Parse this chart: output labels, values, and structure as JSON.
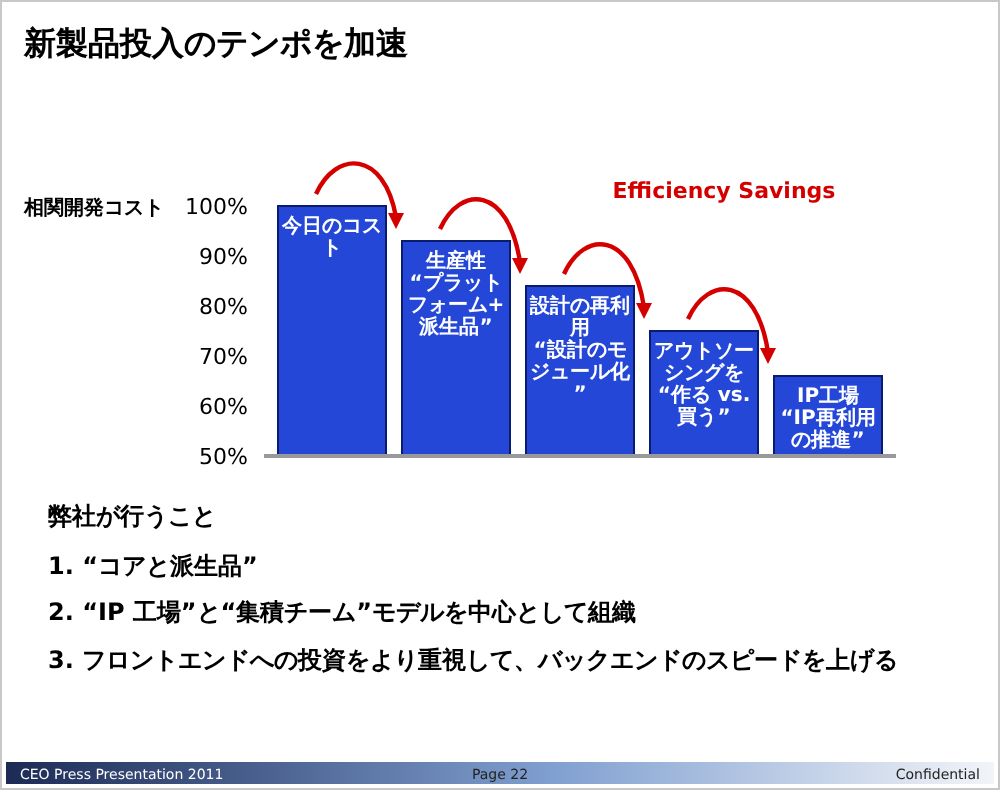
{
  "chart_data": {
    "type": "bar",
    "title": "新製品投入のテンポを加速",
    "ylabel": "相関開発コスト",
    "categories": [
      "今日のコスト",
      "生産性 “プラットフォーム+派生品”",
      "設計の再利用 “設計のモジュール化”",
      "アウトソーシングを “作る vs. 買う”",
      "IP工場 “IP再利用の推進”"
    ],
    "values": [
      100,
      93,
      84,
      75,
      66
    ],
    "color": "#2447d8",
    "ylim": [
      50,
      100
    ],
    "yticks": [
      {
        "value": 50,
        "label": "50%"
      },
      {
        "value": 60,
        "label": "60%"
      },
      {
        "value": 70,
        "label": "70%"
      },
      {
        "value": 80,
        "label": "80%"
      },
      {
        "value": 90,
        "label": "90%"
      },
      {
        "value": 100,
        "label": "100%"
      }
    ],
    "annotations": [
      "Efficiency Savings",
      "弊社が行うこと",
      "1. “コアと派生品”",
      "2. “IP 工場”と“集積チーム”モデルを中心として組織",
      "3. フロントエンドへの投資をより重視して、バックエンドのスピードを上げる",
      "CEO Press Presentation 2011",
      "Page 22",
      "Confidential"
    ]
  }
}
